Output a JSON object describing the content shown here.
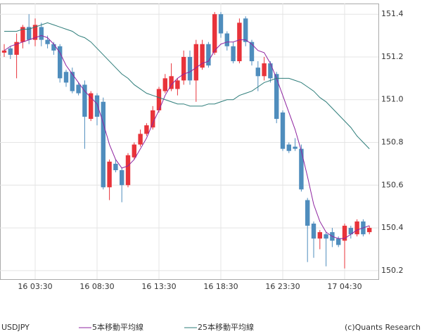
{
  "chart_data": {
    "type": "candlestick",
    "categories": [
      null,
      null,
      null,
      null,
      null,
      "16 03:30",
      null,
      null,
      null,
      null,
      null,
      null,
      null,
      null,
      null,
      "16 08:30",
      null,
      null,
      null,
      null,
      null,
      null,
      null,
      null,
      null,
      "16 13:30",
      null,
      null,
      null,
      null,
      null,
      null,
      null,
      null,
      null,
      "16 18:30",
      null,
      null,
      null,
      null,
      null,
      null,
      null,
      null,
      null,
      "16 23:30",
      null,
      null,
      null,
      null,
      null,
      null,
      null,
      null,
      null,
      "17 04:30",
      null,
      null,
      null,
      null
    ],
    "open": [
      151.22,
      151.24,
      151.21,
      151.27,
      151.34,
      151.28,
      151.34,
      151.28,
      151.26,
      151.25,
      151.13,
      151.13,
      151.07,
      151.07,
      150.91,
      151.02,
      150.99,
      150.59,
      150.7,
      150.67,
      150.6,
      150.73,
      150.79,
      150.84,
      150.87,
      150.95,
      151.04,
      151.05,
      151.05,
      151.09,
      151.2,
      151.09,
      151.15,
      151.26,
      151.22,
      151.4,
      151.31,
      151.25,
      151.18,
      151.38,
      151.27,
      151.15,
      151.11,
      151.17,
      151.12,
      150.94,
      150.79,
      150.78,
      150.77,
      150.53,
      150.42,
      150.35,
      150.37,
      150.38,
      150.35,
      150.34,
      150.4,
      150.37,
      150.43,
      150.38
    ],
    "high": [
      151.26,
      151.25,
      151.31,
      151.35,
      151.4,
      151.38,
      151.36,
      151.3,
      151.27,
      151.26,
      151.14,
      151.15,
      151.08,
      151.09,
      151.04,
      151.03,
      151.01,
      150.72,
      150.72,
      150.68,
      150.75,
      150.8,
      150.86,
      150.89,
      150.97,
      151.06,
      151.12,
      151.17,
      151.1,
      151.23,
      151.23,
      151.28,
      151.28,
      151.27,
      151.41,
      151.41,
      151.32,
      151.27,
      151.38,
      151.39,
      151.28,
      151.18,
      151.2,
      151.18,
      151.13,
      150.95,
      150.8,
      150.82,
      150.79,
      150.54,
      150.43,
      150.39,
      150.38,
      150.4,
      150.36,
      150.42,
      150.41,
      150.44,
      150.44,
      150.41
    ],
    "low": [
      151.2,
      151.19,
      151.1,
      151.24,
      151.26,
      151.25,
      151.25,
      151.24,
      151.21,
      151.08,
      151.06,
      151.03,
      151.02,
      150.77,
      150.9,
      150.88,
      150.58,
      150.53,
      150.66,
      150.52,
      150.59,
      150.72,
      150.78,
      150.83,
      150.86,
      150.94,
      151.03,
      151.04,
      151.02,
      151.07,
      151.07,
      150.99,
      151.14,
      151.15,
      151.21,
      151.29,
      151.23,
      151.17,
      151.17,
      151.25,
      151.16,
      151.04,
      151.09,
      151.08,
      150.89,
      150.76,
      150.75,
      150.76,
      150.57,
      150.24,
      150.26,
      150.3,
      150.22,
      150.31,
      150.31,
      150.21,
      150.35,
      150.36,
      150.36,
      150.37
    ],
    "close": [
      151.23,
      151.21,
      151.27,
      151.34,
      151.28,
      151.35,
      151.28,
      151.26,
      151.23,
      151.1,
      151.08,
      151.04,
      151.03,
      150.92,
      151.03,
      150.92,
      150.59,
      150.71,
      150.67,
      150.6,
      150.74,
      150.79,
      150.84,
      150.88,
      150.95,
      151.05,
      151.1,
      151.11,
      151.09,
      151.2,
      151.09,
      151.26,
      151.26,
      151.16,
      151.4,
      151.31,
      151.25,
      151.18,
      151.36,
      151.27,
      151.18,
      151.11,
      151.17,
      151.1,
      150.91,
      150.77,
      150.76,
      150.77,
      150.58,
      150.41,
      150.35,
      150.38,
      150.35,
      150.34,
      150.32,
      150.41,
      150.37,
      150.43,
      150.37,
      150.4
    ],
    "up_color": "#e8333a",
    "down_color": "#4f8dbd",
    "series": [
      {
        "name": "5本移動平均線",
        "color": "#8e24a0",
        "values": [
          151.23,
          151.25,
          151.26,
          151.27,
          151.28,
          151.29,
          151.3,
          151.29,
          151.26,
          151.22,
          151.16,
          151.12,
          151.08,
          151.04,
          151.01,
          150.98,
          150.89,
          150.79,
          150.72,
          150.68,
          150.69,
          150.72,
          150.77,
          150.82,
          150.89,
          150.95,
          151.02,
          151.07,
          151.1,
          151.12,
          151.13,
          151.15,
          151.17,
          151.18,
          151.23,
          151.26,
          151.27,
          151.27,
          151.28,
          151.28,
          151.26,
          151.23,
          151.22,
          151.17,
          151.1,
          151.02,
          150.94,
          150.86,
          150.76,
          150.64,
          150.51,
          150.43,
          150.38,
          150.36,
          150.35,
          150.35,
          150.37,
          150.39,
          150.4,
          150.41
        ]
      },
      {
        "name": "25本移動平均線",
        "color": "#2e7d7a",
        "values": [
          151.32,
          151.32,
          151.32,
          151.33,
          151.33,
          151.34,
          151.35,
          151.36,
          151.35,
          151.34,
          151.33,
          151.32,
          151.3,
          151.29,
          151.27,
          151.24,
          151.21,
          151.18,
          151.15,
          151.12,
          151.1,
          151.07,
          151.05,
          151.03,
          151.02,
          151.01,
          151.0,
          150.99,
          150.98,
          150.98,
          150.97,
          150.97,
          150.97,
          150.98,
          150.98,
          150.99,
          151.0,
          151.0,
          151.02,
          151.03,
          151.04,
          151.06,
          151.08,
          151.09,
          151.1,
          151.1,
          151.1,
          151.09,
          151.08,
          151.06,
          151.04,
          151.01,
          150.99,
          150.96,
          150.93,
          150.9,
          150.87,
          150.83,
          150.8,
          150.77
        ]
      }
    ],
    "ylim": [
      150.16,
      151.45
    ],
    "yticks": [
      150.2,
      150.4,
      150.6,
      150.8,
      {
        "value": 151,
        "label": "151.0"
      },
      151.2,
      151.4
    ],
    "grid": true,
    "symbol": "USDJPY",
    "credit": "(c)Quants Research"
  }
}
